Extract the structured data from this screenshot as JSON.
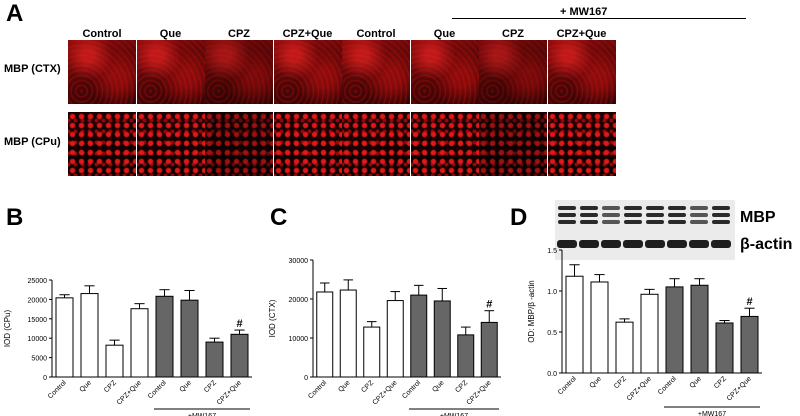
{
  "panel_a": {
    "letter": "A",
    "mw_label": "+ MW167",
    "columns": [
      "Control",
      "Que",
      "CPZ",
      "CPZ+Que",
      "Control",
      "Que",
      "CPZ",
      "CPZ+Que"
    ],
    "rows": [
      "MBP (CTX)",
      "MBP (CPu)"
    ]
  },
  "blot": {
    "bands": [
      "MBP",
      "β-actin"
    ]
  },
  "chart_data": [
    {
      "panel": "B",
      "type": "bar",
      "ylabel": "IOD (CPu)",
      "ylim": [
        0,
        25000
      ],
      "yticks": [
        "0",
        "5000",
        "10000",
        "15000",
        "20000",
        "25000"
      ],
      "categories": [
        "Control",
        "Que",
        "CPZ",
        "CPZ+Que",
        "Control",
        "Que",
        "CPZ",
        "CPZ+Que"
      ],
      "values": [
        20400,
        21500,
        8200,
        17600,
        20800,
        19800,
        9000,
        11000
      ],
      "errors": [
        800,
        2000,
        1300,
        1300,
        1700,
        2500,
        1000,
        1100
      ],
      "annotation": "#",
      "group_label": "+MW167",
      "fills": [
        "#ffffff",
        "#ffffff",
        "#ffffff",
        "#ffffff",
        "#666666",
        "#666666",
        "#666666",
        "#666666"
      ]
    },
    {
      "panel": "C",
      "type": "bar",
      "ylabel": "IOD (CTX)",
      "ylim": [
        0,
        30000
      ],
      "yticks": [
        "0",
        "10000",
        "20000",
        "30000"
      ],
      "categories": [
        "Control",
        "Que",
        "CPZ",
        "CPZ+Que",
        "Control",
        "Que",
        "CPZ",
        "CPZ+Que"
      ],
      "values": [
        21800,
        22300,
        12800,
        19600,
        21000,
        19500,
        10800,
        14000
      ],
      "errors": [
        2300,
        2600,
        1400,
        2300,
        2500,
        3200,
        2000,
        3000
      ],
      "annotation": "#",
      "group_label": "+MW167",
      "fills": [
        "#ffffff",
        "#ffffff",
        "#ffffff",
        "#ffffff",
        "#666666",
        "#666666",
        "#666666",
        "#666666"
      ]
    },
    {
      "panel": "D",
      "type": "bar",
      "ylabel": "OD: MBP/β -actin",
      "ylim": [
        0,
        1.5
      ],
      "yticks": [
        "0.0",
        "0.5",
        "1.0",
        "1.5"
      ],
      "categories": [
        "Control",
        "Que",
        "CPZ",
        "CPZ+Que",
        "Control",
        "Que",
        "CPZ",
        "CPZ+Que"
      ],
      "values": [
        1.18,
        1.11,
        0.62,
        0.96,
        1.05,
        1.07,
        0.61,
        0.69
      ],
      "errors": [
        0.14,
        0.09,
        0.04,
        0.06,
        0.1,
        0.08,
        0.03,
        0.1
      ],
      "annotation": "#",
      "group_label": "+MW167",
      "fills": [
        "#ffffff",
        "#ffffff",
        "#ffffff",
        "#ffffff",
        "#666666",
        "#666666",
        "#666666",
        "#666666"
      ]
    }
  ]
}
